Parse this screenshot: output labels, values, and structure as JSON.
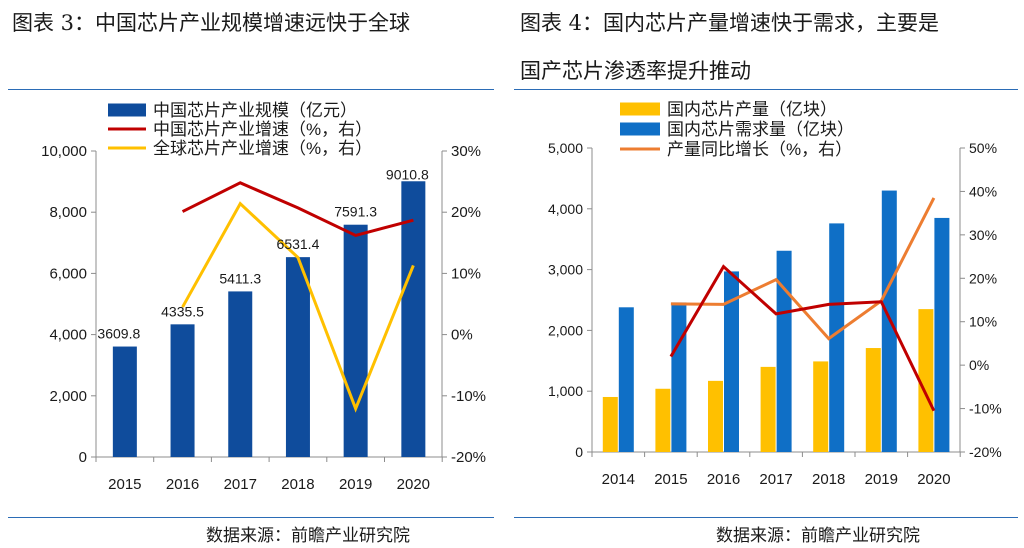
{
  "titles": {
    "left": "图表 3：中国芯片产业规模增速远快于全球",
    "right_line1": "图表 4：国内芯片产量增速快于需求，主要是",
    "right_line2": "国产芯片渗透率提升推动"
  },
  "sources": {
    "left": "数据来源：前瞻产业研究院",
    "right": "数据来源：前瞻产业研究院"
  },
  "colors": {
    "navy": "#0f4c9c",
    "darkred": "#c00000",
    "gold": "#ffc000",
    "blue": "#0f6fc6",
    "orange": "#ed7d31",
    "rule": "#2b6cb6"
  },
  "chart_data": [
    {
      "id": "left",
      "type": "bar",
      "categories": [
        "2015",
        "2016",
        "2017",
        "2018",
        "2019",
        "2020"
      ],
      "series": [
        {
          "name": "中国芯片产业规模（亿元）",
          "type": "bar",
          "axis": "left",
          "color": "#0f4c9c",
          "values": [
            3609.8,
            4335.5,
            5411.3,
            6531.4,
            7591.3,
            9010.8
          ],
          "labels": [
            "3609.8",
            "4335.5",
            "5411.3",
            "6531.4",
            "7591.3",
            "9010.8"
          ]
        },
        {
          "name": "中国芯片产业增速（%，右）",
          "type": "line",
          "axis": "right",
          "color": "#c00000",
          "values": [
            null,
            20.1,
            24.8,
            20.7,
            16.2,
            18.7
          ]
        },
        {
          "name": "全球芯片产业增速（%，右）",
          "type": "line",
          "axis": "right",
          "color": "#ffc000",
          "values": [
            null,
            4.5,
            21.4,
            12.6,
            -12.1,
            11.3
          ]
        }
      ],
      "ylim": [
        0,
        10000
      ],
      "yticks": [
        "0",
        "2,000",
        "4,000",
        "6,000",
        "8,000",
        "10,000"
      ],
      "y2lim": [
        -20,
        30
      ],
      "y2ticks": [
        "-20%",
        "-10%",
        "0%",
        "10%",
        "20%",
        "30%"
      ],
      "legend": "top"
    },
    {
      "id": "right",
      "type": "bar",
      "categories": [
        "2014",
        "2015",
        "2016",
        "2017",
        "2018",
        "2019",
        "2020"
      ],
      "series": [
        {
          "name": "国内芯片产量（亿块）",
          "type": "bar",
          "axis": "left",
          "color": "#ffc000",
          "values": [
            905,
            1040,
            1170,
            1400,
            1490,
            1710,
            2350
          ]
        },
        {
          "name": "国内芯片需求量（亿块）",
          "type": "bar",
          "axis": "left",
          "color": "#0f6fc6",
          "values": [
            2380,
            2460,
            2970,
            3310,
            3760,
            4300,
            3850
          ]
        },
        {
          "name": "产量同比增长（%，右）",
          "type": "line",
          "axis": "right",
          "color": "#ed7d31",
          "values": [
            null,
            14.1,
            14.0,
            19.7,
            6.1,
            14.8,
            38.5
          ]
        },
        {
          "name": "",
          "type": "line",
          "axis": "right",
          "color": "#c00000",
          "values": [
            null,
            2.0,
            22.7,
            11.8,
            14.0,
            14.6,
            -10.5
          ]
        }
      ],
      "ylim": [
        0,
        5000
      ],
      "yticks": [
        "0",
        "1,000",
        "2,000",
        "3,000",
        "4,000",
        "5,000"
      ],
      "y2lim": [
        -20,
        50
      ],
      "y2ticks": [
        "-20%",
        "-10%",
        "0%",
        "10%",
        "20%",
        "30%",
        "40%",
        "50%"
      ],
      "legend": "top"
    }
  ]
}
